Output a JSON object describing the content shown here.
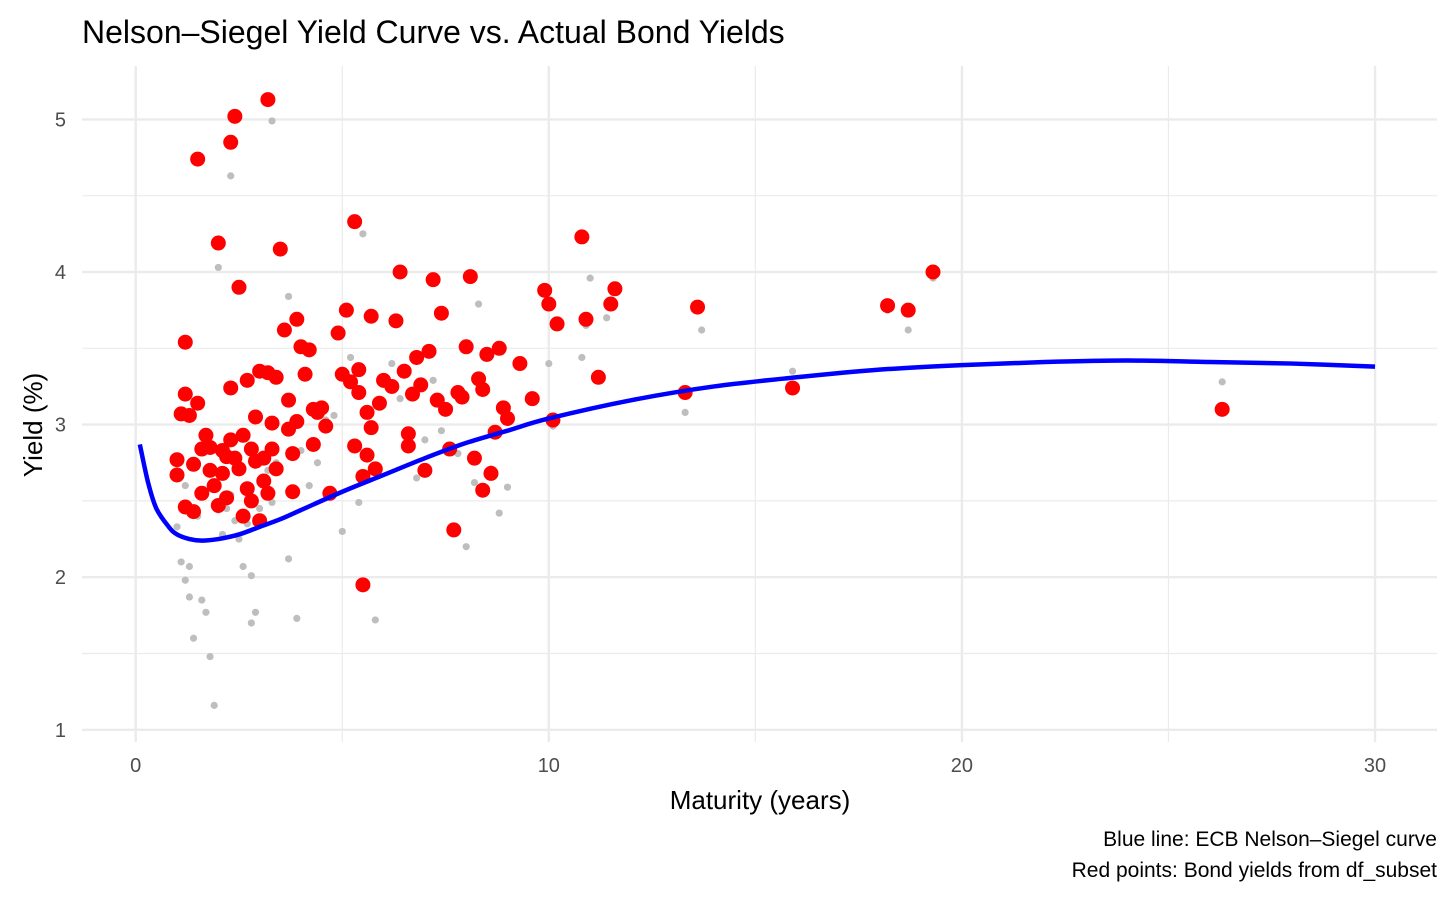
{
  "chart_data": {
    "type": "scatter",
    "title": "Nelson–Siegel Yield Curve vs. Actual Bond Yields",
    "xlabel": "Maturity (years)",
    "ylabel": "Yield (%)",
    "xlim": [
      -1.3,
      31.5
    ],
    "ylim": [
      0.92,
      5.35
    ],
    "x_ticks": [
      0,
      10,
      20,
      30
    ],
    "y_ticks": [
      1,
      2,
      3,
      4,
      5
    ],
    "grid": true,
    "caption": [
      "Blue line: ECB Nelson–Siegel curve",
      "Red points: Bond yields from df_subset"
    ],
    "colors": {
      "curve": "#0000ff",
      "bond_points": "#ff0000",
      "background_points": "#bebebe",
      "grid": "#ebebeb"
    },
    "curve": {
      "name": "ECB Nelson–Siegel curve",
      "x": [
        0.1,
        0.3,
        0.5,
        0.8,
        1.0,
        1.3,
        1.6,
        2.0,
        2.5,
        3.0,
        3.5,
        4.0,
        5.0,
        6.0,
        7.0,
        8.0,
        9.0,
        10.0,
        12.0,
        14.0,
        16.0,
        18.0,
        20.0,
        22.0,
        24.0,
        26.0,
        28.0,
        30.0
      ],
      "y": [
        2.87,
        2.62,
        2.45,
        2.33,
        2.28,
        2.25,
        2.24,
        2.25,
        2.28,
        2.33,
        2.38,
        2.44,
        2.56,
        2.67,
        2.78,
        2.88,
        2.96,
        3.04,
        3.16,
        3.25,
        3.31,
        3.36,
        3.39,
        3.41,
        3.42,
        3.41,
        3.4,
        3.38
      ]
    },
    "series": [
      {
        "name": "Bond yields",
        "x": [
          1.0,
          1.0,
          1.1,
          1.2,
          1.2,
          1.2,
          1.3,
          1.4,
          1.4,
          1.5,
          1.5,
          1.6,
          1.6,
          1.7,
          1.8,
          1.8,
          1.9,
          2.0,
          2.0,
          2.1,
          2.1,
          2.2,
          2.2,
          2.3,
          2.3,
          2.4,
          2.4,
          2.5,
          2.5,
          2.6,
          2.6,
          2.7,
          2.7,
          2.8,
          2.8,
          2.9,
          2.9,
          3.0,
          3.0,
          3.1,
          3.1,
          3.2,
          3.2,
          3.3,
          3.3,
          3.4,
          3.4,
          3.5,
          3.6,
          3.7,
          3.7,
          3.8,
          3.8,
          3.9,
          3.9,
          4.0,
          4.1,
          4.2,
          4.3,
          4.4,
          4.5,
          4.6,
          4.7,
          4.9,
          5.0,
          5.1,
          5.2,
          5.3,
          5.3,
          5.4,
          5.4,
          5.5,
          5.5,
          5.6,
          5.7,
          5.7,
          5.8,
          5.9,
          6.0,
          6.2,
          6.3,
          6.4,
          6.5,
          6.6,
          6.6,
          6.7,
          6.8,
          6.9,
          7.0,
          7.1,
          7.2,
          7.3,
          7.4,
          7.5,
          7.6,
          7.7,
          7.8,
          7.9,
          8.0,
          8.1,
          8.2,
          8.3,
          8.4,
          8.4,
          8.5,
          8.6,
          8.7,
          8.8,
          8.9,
          9.0,
          9.3,
          9.6,
          9.9,
          10.0,
          10.1,
          10.2,
          10.8,
          10.9,
          11.2,
          11.5,
          11.6,
          13.3,
          13.6,
          15.9,
          18.2,
          18.7,
          19.3,
          26.3,
          5.6,
          3.2,
          2.3,
          4.3
        ],
        "y": [
          2.77,
          2.67,
          3.07,
          3.54,
          3.2,
          2.46,
          3.06,
          2.43,
          2.74,
          4.74,
          3.14,
          2.84,
          2.55,
          2.93,
          2.7,
          2.85,
          2.6,
          4.19,
          2.47,
          2.83,
          2.68,
          2.79,
          2.52,
          3.24,
          4.85,
          5.02,
          2.78,
          3.9,
          2.71,
          2.93,
          2.4,
          3.29,
          2.58,
          2.84,
          2.5,
          3.05,
          2.76,
          3.35,
          2.37,
          2.63,
          2.78,
          5.13,
          3.34,
          2.84,
          3.01,
          3.31,
          2.71,
          4.15,
          3.62,
          2.97,
          3.16,
          2.81,
          2.56,
          3.69,
          3.02,
          3.51,
          3.33,
          3.49,
          2.87,
          3.08,
          3.11,
          2.99,
          2.55,
          3.6,
          3.33,
          3.75,
          3.28,
          2.86,
          4.33,
          3.36,
          3.21,
          2.66,
          1.95,
          3.08,
          3.71,
          2.98,
          2.71,
          3.14,
          3.29,
          3.25,
          3.68,
          4.0,
          3.35,
          2.94,
          2.86,
          3.2,
          3.44,
          3.26,
          2.7,
          3.48,
          3.95,
          3.16,
          3.73,
          3.1,
          2.84,
          2.31,
          3.21,
          3.18,
          3.51,
          3.97,
          2.78,
          3.3,
          3.23,
          2.57,
          3.46,
          2.68,
          2.95,
          3.5,
          3.11,
          3.04,
          3.4,
          3.17,
          3.88,
          3.79,
          3.03,
          3.66,
          4.23,
          3.69,
          3.31,
          3.79,
          3.89,
          3.21,
          3.77,
          3.24,
          3.78,
          3.75,
          4.0,
          3.1,
          2.8,
          2.55,
          2.9,
          3.1
        ]
      },
      {
        "name": "Other bonds",
        "x": [
          1.0,
          1.1,
          1.2,
          1.2,
          1.3,
          1.3,
          1.4,
          1.5,
          1.6,
          1.7,
          1.8,
          1.9,
          2.0,
          2.1,
          2.2,
          2.3,
          2.4,
          2.5,
          2.6,
          2.7,
          2.8,
          2.8,
          2.9,
          3.0,
          3.1,
          3.2,
          3.3,
          3.4,
          3.6,
          3.7,
          3.9,
          4.0,
          4.2,
          4.4,
          4.6,
          4.8,
          5.0,
          5.2,
          5.4,
          5.6,
          5.8,
          6.0,
          6.2,
          6.4,
          6.6,
          6.8,
          7.0,
          7.2,
          7.4,
          7.6,
          7.8,
          8.0,
          8.2,
          8.4,
          8.6,
          8.8,
          9.0,
          9.5,
          10.0,
          10.1,
          10.8,
          11.0,
          11.4,
          13.3,
          13.7,
          15.9,
          18.2,
          18.7,
          19.3,
          26.3,
          2.0,
          3.3,
          5.5,
          8.3,
          10.9,
          3.7,
          2.3
        ],
        "y": [
          2.33,
          2.1,
          1.98,
          2.6,
          1.87,
          2.07,
          1.6,
          2.4,
          1.85,
          1.77,
          1.48,
          1.16,
          2.44,
          2.28,
          2.45,
          2.54,
          2.37,
          2.25,
          2.07,
          2.35,
          1.7,
          2.01,
          1.77,
          2.45,
          2.65,
          2.7,
          2.49,
          2.75,
          2.96,
          2.12,
          1.73,
          2.83,
          2.6,
          2.75,
          3.03,
          3.06,
          2.3,
          3.44,
          2.49,
          2.68,
          1.72,
          3.28,
          3.4,
          3.17,
          2.9,
          2.65,
          2.9,
          3.29,
          2.96,
          3.11,
          2.81,
          2.2,
          2.62,
          3.24,
          2.71,
          2.42,
          2.59,
          3.16,
          3.4,
          2.99,
          3.44,
          3.96,
          3.7,
          3.08,
          3.62,
          3.35,
          3.75,
          3.62,
          3.96,
          3.28,
          4.03,
          4.99,
          4.25,
          3.79,
          3.65,
          3.84,
          4.63
        ]
      }
    ]
  }
}
